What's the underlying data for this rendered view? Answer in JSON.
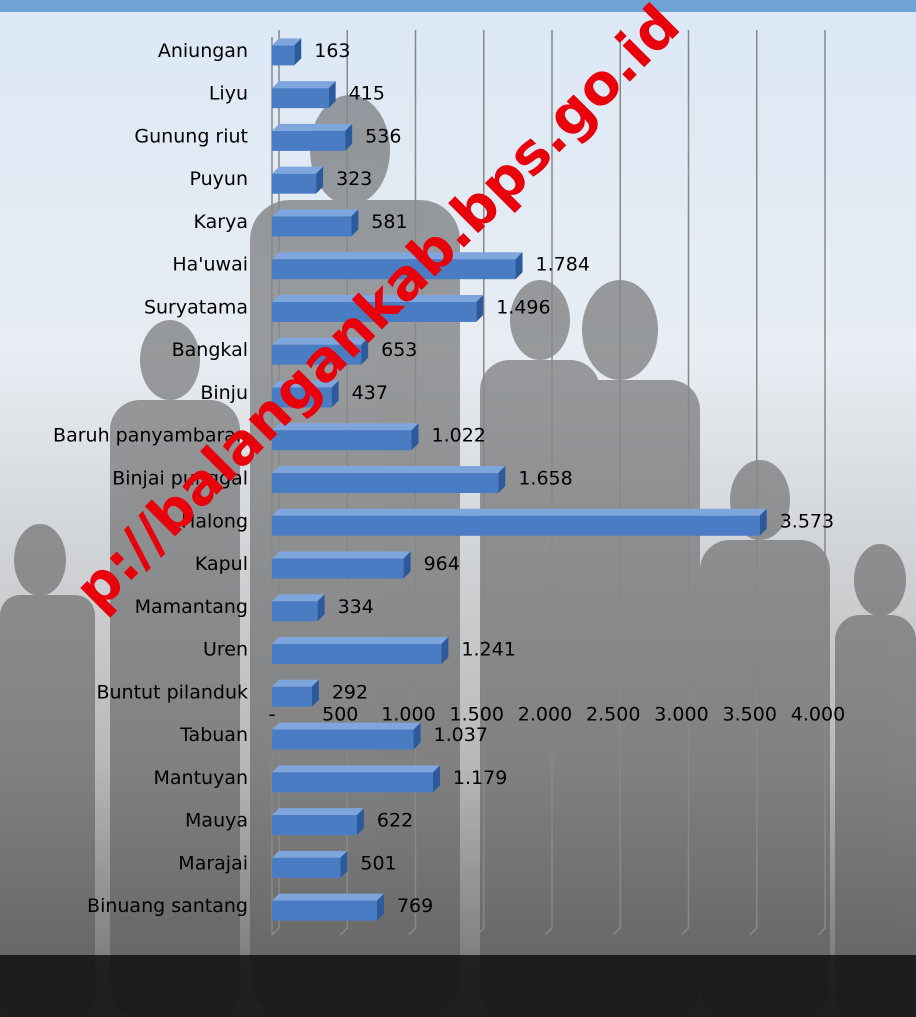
{
  "chart_data": {
    "type": "bar",
    "orientation": "horizontal",
    "watermark": "p://balangankab.bps.go.id",
    "categories": [
      "Aniungan",
      "Liyu",
      "Gunung riut",
      "Puyun",
      "Karya",
      "Ha'uwai",
      "Suryatama",
      "Bangkal",
      "Binju",
      "Baruh panyambaran",
      "Binjai punggal",
      "Halong",
      "Kapul",
      "Mamantang",
      "Uren",
      "Buntut pilanduk",
      "Tabuan",
      "Mantuyan",
      "Mauya",
      "Marajai",
      "Binuang santang"
    ],
    "values": [
      163,
      415,
      536,
      323,
      581,
      1784,
      1496,
      653,
      437,
      1022,
      1658,
      3573,
      964,
      334,
      1241,
      292,
      1037,
      1179,
      622,
      501,
      769
    ],
    "value_labels": [
      "163",
      "415",
      "536",
      "323",
      "581",
      "1.784",
      "1.496",
      "653",
      "437",
      "1.022",
      "1.658",
      "3.573",
      "964",
      "334",
      "1.241",
      "292",
      "1.037",
      "1.179",
      "622",
      "501",
      "769"
    ],
    "color": "#4a7cc4",
    "xlim": [
      0,
      4000
    ],
    "xticks": [
      {
        "value": 0,
        "label": "-"
      },
      500,
      {
        "value": 1000,
        "label": "1.000"
      },
      {
        "value": 1500,
        "label": "1.500"
      },
      {
        "value": 2000,
        "label": "2.000"
      },
      {
        "value": 2500,
        "label": "2.500"
      },
      {
        "value": 3000,
        "label": "3.000"
      },
      {
        "value": 3500,
        "label": "3.500"
      },
      {
        "value": 4000,
        "label": "4.000"
      }
    ],
    "grid": true
  }
}
